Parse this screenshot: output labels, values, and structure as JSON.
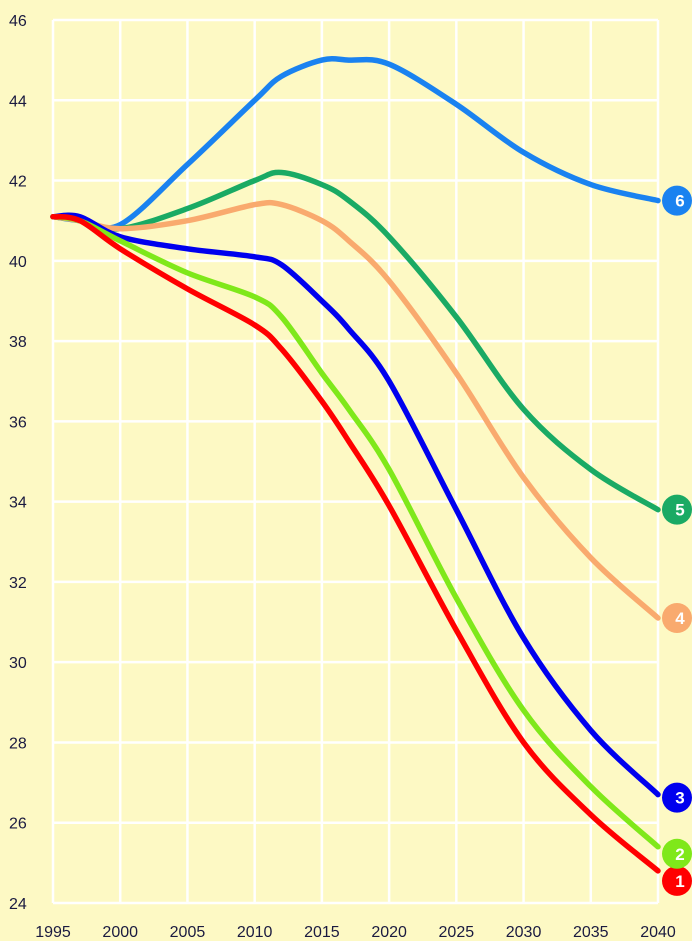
{
  "colors": {
    "background": "#fdf9c4",
    "grid": "#ffffff",
    "tick_text": "#1a1a40"
  },
  "chart_data": {
    "type": "line",
    "title": "",
    "xlabel": "",
    "ylabel": "",
    "xlim": [
      1995,
      2040
    ],
    "ylim": [
      24,
      46
    ],
    "x_ticks": [
      "1995",
      "2000",
      "2005",
      "2010",
      "2015",
      "2020",
      "2025",
      "2030",
      "2035",
      "2040"
    ],
    "y_ticks": [
      "24",
      "26",
      "28",
      "30",
      "32",
      "34",
      "36",
      "38",
      "40",
      "42",
      "44",
      "46"
    ],
    "grid": true,
    "legend": "none",
    "x": [
      1995,
      1997,
      2000,
      2005,
      2010,
      2012,
      2015,
      2017,
      2020,
      2025,
      2030,
      2035,
      2040
    ],
    "series": [
      {
        "marker_label": "1",
        "color": "#ff0000",
        "values": [
          41.1,
          41.0,
          40.3,
          39.3,
          38.4,
          37.8,
          36.5,
          35.5,
          33.9,
          30.8,
          28.0,
          26.2,
          24.8
        ]
      },
      {
        "marker_label": "2",
        "color": "#7fe81a",
        "values": [
          41.1,
          41.0,
          40.5,
          39.7,
          39.1,
          38.6,
          37.2,
          36.3,
          34.8,
          31.6,
          28.8,
          26.9,
          25.4
        ]
      },
      {
        "marker_label": "3",
        "color": "#0000ee",
        "values": [
          41.1,
          41.1,
          40.6,
          40.3,
          40.1,
          39.9,
          39.0,
          38.3,
          37.0,
          33.8,
          30.6,
          28.3,
          26.7
        ]
      },
      {
        "marker_label": "4",
        "color": "#f9aa6e",
        "values": [
          41.1,
          41.0,
          40.8,
          41.0,
          41.4,
          41.4,
          41.0,
          40.5,
          39.5,
          37.2,
          34.6,
          32.6,
          31.1
        ]
      },
      {
        "marker_label": "5",
        "color": "#1aaa64",
        "values": [
          41.1,
          41.0,
          40.8,
          41.3,
          42.0,
          42.2,
          41.9,
          41.5,
          40.6,
          38.6,
          36.3,
          34.8,
          33.8
        ]
      },
      {
        "marker_label": "6",
        "color": "#1a82f0",
        "values": [
          41.1,
          41.0,
          40.9,
          42.4,
          44.0,
          44.6,
          45.0,
          45.0,
          44.9,
          43.9,
          42.7,
          41.9,
          41.5
        ]
      }
    ]
  }
}
